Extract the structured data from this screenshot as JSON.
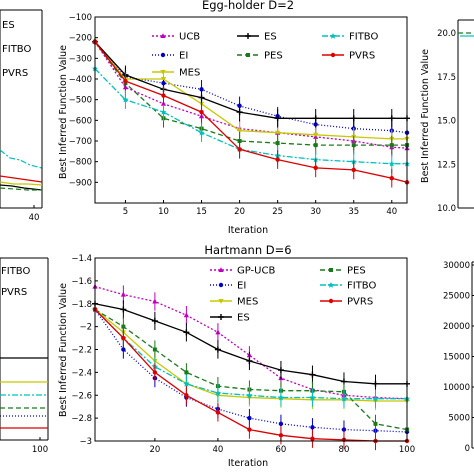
{
  "chart_data": [
    {
      "id": "egg-holder",
      "type": "line",
      "title": "Egg-holder D=2",
      "xlabel": "Iteration",
      "ylabel": "Best Inferred Function Value",
      "xlim": [
        1,
        42
      ],
      "ylim": [
        -1000,
        -100
      ],
      "xticks": [
        5,
        10,
        15,
        20,
        25,
        30,
        35,
        40
      ],
      "yticks": [
        -100,
        -200,
        -300,
        -400,
        -500,
        -600,
        -700,
        -800,
        -900
      ],
      "legend": "top",
      "series": [
        {
          "name": "UCB",
          "color": "#bf00bf",
          "dash": "2,2",
          "marker": "^",
          "x": [
            1,
            5,
            10,
            15,
            20,
            25,
            30,
            35,
            40,
            42
          ],
          "y": [
            -220,
            -440,
            -520,
            -580,
            -640,
            -660,
            -680,
            -700,
            -730,
            -735
          ]
        },
        {
          "name": "EI",
          "color": "#0000cc",
          "dash": "1,2",
          "marker": "o",
          "x": [
            1,
            5,
            10,
            15,
            20,
            25,
            30,
            35,
            40,
            42
          ],
          "y": [
            -220,
            -390,
            -420,
            -450,
            -530,
            -580,
            -620,
            -640,
            -650,
            -660
          ]
        },
        {
          "name": "MES",
          "color": "#c8c800",
          "dash": "",
          "marker": "v",
          "x": [
            1,
            5,
            10,
            15,
            20,
            25,
            30,
            35,
            40,
            42
          ],
          "y": [
            -220,
            -400,
            -400,
            -520,
            -650,
            -660,
            -670,
            -680,
            -690,
            -690
          ]
        },
        {
          "name": "ES",
          "color": "#000000",
          "dash": "",
          "marker": "+",
          "x": [
            1,
            5,
            10,
            15,
            20,
            25,
            30,
            35,
            40,
            42
          ],
          "y": [
            -220,
            -380,
            -450,
            -490,
            -560,
            -590,
            -590,
            -590,
            -590,
            -590
          ]
        },
        {
          "name": "PES",
          "color": "#1a7a1a",
          "dash": "5,3",
          "marker": "s",
          "x": [
            1,
            5,
            10,
            15,
            20,
            25,
            30,
            35,
            40,
            42
          ],
          "y": [
            -220,
            -420,
            -590,
            -640,
            -700,
            -710,
            -720,
            -720,
            -720,
            -720
          ]
        },
        {
          "name": "FITBO",
          "color": "#00c0c0",
          "dash": "6,2,2,2",
          "marker": "*",
          "x": [
            1,
            5,
            10,
            15,
            20,
            25,
            30,
            35,
            40,
            42
          ],
          "y": [
            -350,
            -500,
            -560,
            -660,
            -740,
            -770,
            -790,
            -800,
            -810,
            -810
          ]
        },
        {
          "name": "PVRS",
          "color": "#dd0000",
          "dash": "",
          "marker": "o",
          "x": [
            1,
            5,
            10,
            15,
            20,
            25,
            30,
            35,
            40,
            42
          ],
          "y": [
            -220,
            -410,
            -480,
            -560,
            -740,
            -790,
            -830,
            -840,
            -880,
            -900
          ]
        }
      ]
    },
    {
      "id": "hartmann",
      "type": "line",
      "title": "Hartmann D=6",
      "xlabel": "Iteration",
      "ylabel": "Best Inferred Function Value",
      "xlim": [
        1,
        100
      ],
      "ylim": [
        -3.0,
        -1.4
      ],
      "xticks": [
        20,
        40,
        60,
        80,
        100
      ],
      "yticks": [
        -1.4,
        -1.6,
        -1.8,
        -2.0,
        -2.2,
        -2.4,
        -2.6,
        -2.8,
        -3.0
      ],
      "legend": "top",
      "series": [
        {
          "name": "GP-UCB",
          "color": "#bf00bf",
          "dash": "2,2",
          "marker": "^",
          "x": [
            1,
            10,
            20,
            30,
            40,
            50,
            60,
            70,
            80,
            90,
            100
          ],
          "y": [
            -1.65,
            -1.72,
            -1.78,
            -1.9,
            -2.05,
            -2.25,
            -2.45,
            -2.55,
            -2.6,
            -2.62,
            -2.63
          ]
        },
        {
          "name": "EI",
          "color": "#0000cc",
          "dash": "1,2",
          "marker": "o",
          "x": [
            1,
            10,
            20,
            30,
            40,
            50,
            60,
            70,
            80,
            90,
            100
          ],
          "y": [
            -1.85,
            -2.2,
            -2.45,
            -2.62,
            -2.72,
            -2.8,
            -2.85,
            -2.88,
            -2.9,
            -2.91,
            -2.92
          ]
        },
        {
          "name": "MES",
          "color": "#c8c800",
          "dash": "",
          "marker": "v",
          "x": [
            1,
            10,
            20,
            30,
            40,
            50,
            60,
            70,
            80,
            90,
            100
          ],
          "y": [
            -1.85,
            -2.05,
            -2.3,
            -2.5,
            -2.6,
            -2.62,
            -2.63,
            -2.64,
            -2.64,
            -2.65,
            -2.65
          ]
        },
        {
          "name": "ES",
          "color": "#000000",
          "dash": "",
          "marker": "+",
          "x": [
            1,
            10,
            20,
            30,
            40,
            50,
            60,
            70,
            80,
            90,
            100
          ],
          "y": [
            -1.8,
            -1.85,
            -1.95,
            -2.05,
            -2.2,
            -2.3,
            -2.38,
            -2.42,
            -2.48,
            -2.5,
            -2.5
          ]
        },
        {
          "name": "PES",
          "color": "#1a7a1a",
          "dash": "5,3",
          "marker": "s",
          "x": [
            1,
            10,
            20,
            30,
            40,
            50,
            60,
            70,
            80,
            90,
            100
          ],
          "y": [
            -1.85,
            -2.0,
            -2.2,
            -2.4,
            -2.52,
            -2.55,
            -2.56,
            -2.56,
            -2.57,
            -2.85,
            -2.9
          ]
        },
        {
          "name": "FITBO",
          "color": "#00c0c0",
          "dash": "6,2,2,2",
          "marker": "*",
          "x": [
            1,
            10,
            20,
            30,
            40,
            50,
            60,
            70,
            80,
            90,
            100
          ],
          "y": [
            -1.85,
            -2.1,
            -2.35,
            -2.5,
            -2.58,
            -2.6,
            -2.62,
            -2.62,
            -2.63,
            -2.63,
            -2.63
          ]
        },
        {
          "name": "PVRS",
          "color": "#dd0000",
          "dash": "",
          "marker": "o",
          "x": [
            1,
            10,
            20,
            30,
            40,
            50,
            60,
            70,
            80,
            90,
            100
          ],
          "y": [
            -1.85,
            -2.1,
            -2.4,
            -2.6,
            -2.75,
            -2.9,
            -2.95,
            -2.98,
            -2.99,
            -3.0,
            -3.0
          ]
        }
      ]
    },
    {
      "id": "top-left-partial",
      "type": "line",
      "xticks": [
        40
      ],
      "legend_visible": [
        "ES",
        "FITBO",
        "PVRS"
      ]
    },
    {
      "id": "bottom-left-partial",
      "type": "line",
      "xticks": [
        100
      ],
      "legend_visible": [
        "FITBO",
        "PVRS"
      ]
    },
    {
      "id": "top-right-partial",
      "type": "line",
      "ylabel": "Best Inferred Function Value",
      "yticks": [
        10.0,
        12.5,
        15.0,
        17.5,
        20.0
      ]
    },
    {
      "id": "bottom-right-partial",
      "type": "line",
      "yticks": [
        0,
        5000,
        10000,
        15000,
        20000,
        25000,
        30000
      ]
    }
  ]
}
